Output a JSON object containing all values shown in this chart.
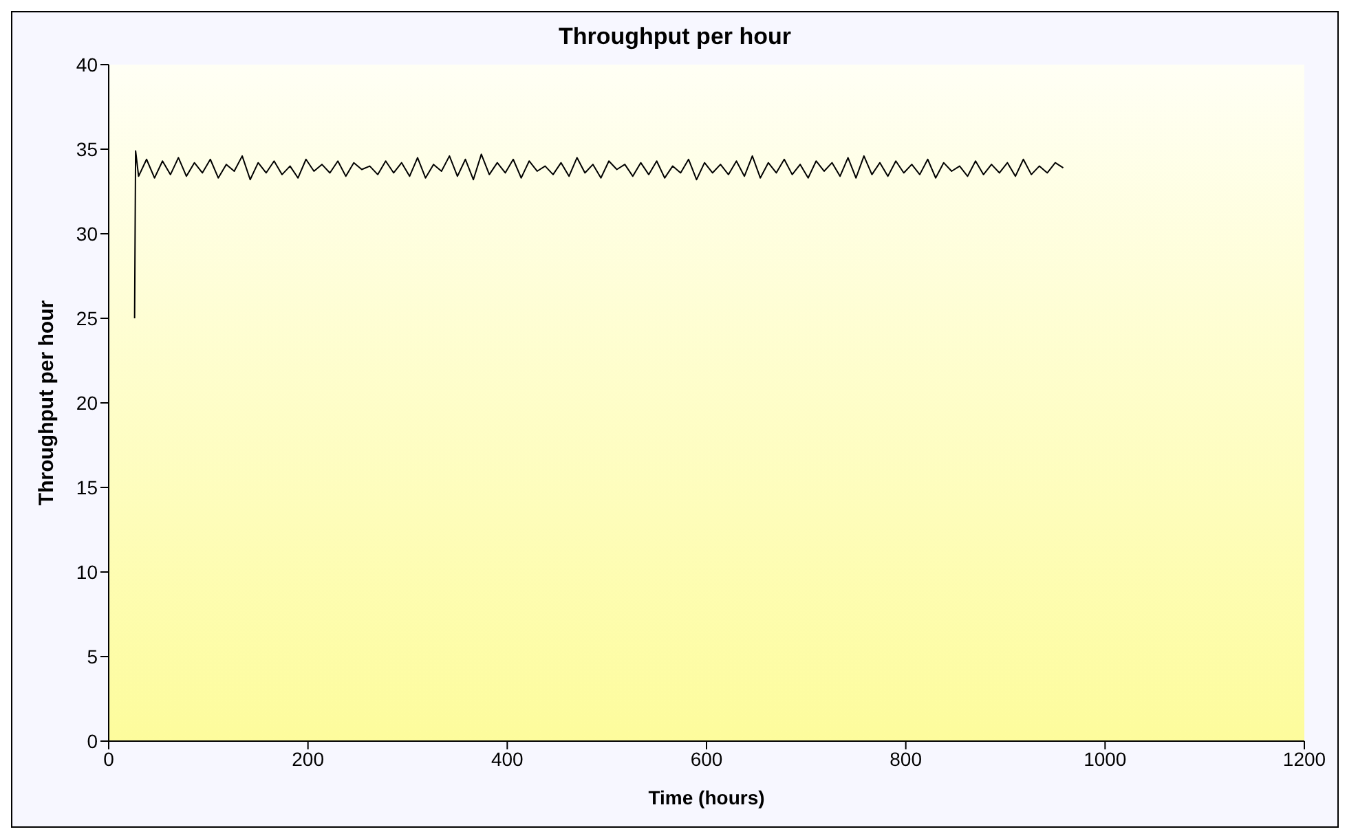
{
  "chart_data": {
    "type": "line",
    "title": "Throughput per hour",
    "xlabel": "Time (hours)",
    "ylabel": "Throughput per hour",
    "xlim": [
      0,
      1200
    ],
    "xticks": [
      0,
      200,
      400,
      600,
      800,
      1000,
      1200
    ],
    "ylim": [
      0,
      40
    ],
    "yticks": [
      0,
      5,
      10,
      15,
      20,
      25,
      30,
      35,
      40
    ],
    "grid": false,
    "legend": false,
    "series": [
      {
        "color": "#000000",
        "x": [
          26,
          27,
          30,
          38,
          46,
          54,
          62,
          70,
          78,
          86,
          94,
          102,
          110,
          118,
          126,
          134,
          142,
          150,
          158,
          166,
          174,
          182,
          190,
          198,
          206,
          214,
          222,
          230,
          238,
          246,
          254,
          262,
          270,
          278,
          286,
          294,
          302,
          310,
          318,
          326,
          334,
          342,
          350,
          358,
          366,
          374,
          382,
          390,
          398,
          406,
          414,
          422,
          430,
          438,
          446,
          454,
          462,
          470,
          478,
          486,
          494,
          502,
          510,
          518,
          526,
          534,
          542,
          550,
          558,
          566,
          574,
          582,
          590,
          598,
          606,
          614,
          622,
          630,
          638,
          646,
          654,
          662,
          670,
          678,
          686,
          694,
          702,
          710,
          718,
          726,
          734,
          742,
          750,
          758,
          766,
          774,
          782,
          790,
          798,
          806,
          814,
          822,
          830,
          838,
          846,
          854,
          862,
          870,
          878,
          886,
          894,
          902,
          910,
          918,
          926,
          934,
          942,
          950,
          958
        ],
        "values": [
          25,
          34.9,
          33.4,
          34.4,
          33.3,
          34.3,
          33.5,
          34.5,
          33.4,
          34.2,
          33.6,
          34.4,
          33.3,
          34.1,
          33.7,
          34.6,
          33.2,
          34.2,
          33.6,
          34.3,
          33.5,
          34.0,
          33.3,
          34.4,
          33.7,
          34.1,
          33.6,
          34.3,
          33.4,
          34.2,
          33.8,
          34.0,
          33.5,
          34.3,
          33.6,
          34.2,
          33.4,
          34.5,
          33.3,
          34.1,
          33.7,
          34.6,
          33.4,
          34.4,
          33.2,
          34.7,
          33.5,
          34.2,
          33.6,
          34.4,
          33.3,
          34.3,
          33.7,
          34.0,
          33.5,
          34.2,
          33.4,
          34.5,
          33.6,
          34.1,
          33.3,
          34.3,
          33.8,
          34.1,
          33.4,
          34.2,
          33.5,
          34.3,
          33.3,
          34.0,
          33.6,
          34.4,
          33.2,
          34.2,
          33.6,
          34.1,
          33.5,
          34.3,
          33.4,
          34.6,
          33.3,
          34.2,
          33.6,
          34.4,
          33.5,
          34.1,
          33.3,
          34.3,
          33.7,
          34.2,
          33.4,
          34.5,
          33.3,
          34.6,
          33.5,
          34.2,
          33.4,
          34.3,
          33.6,
          34.1,
          33.5,
          34.4,
          33.3,
          34.2,
          33.7,
          34.0,
          33.4,
          34.3,
          33.5,
          34.1,
          33.6,
          34.2,
          33.4,
          34.4,
          33.5,
          34.0,
          33.6,
          34.2,
          33.9
        ]
      }
    ]
  }
}
